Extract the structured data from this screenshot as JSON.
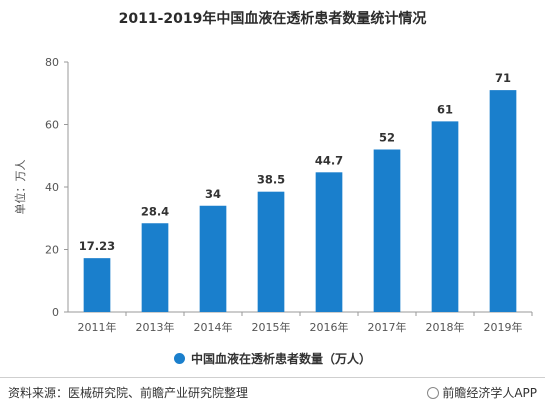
{
  "title": "2011-2019年中国血液在透析患者数量统计情况",
  "chart_data": {
    "type": "bar",
    "categories": [
      "2011年",
      "2013年",
      "2014年",
      "2015年",
      "2016年",
      "2017年",
      "2018年",
      "2019年"
    ],
    "series": [
      {
        "name": "中国血液在透析患者数量（万人）",
        "values": [
          17.23,
          28.4,
          34,
          38.5,
          44.7,
          52,
          61,
          71
        ]
      }
    ],
    "value_labels": [
      "17.23",
      "28.4",
      "34",
      "38.5",
      "44.7",
      "52",
      "61",
      "71"
    ],
    "ylabel": "单位：万人",
    "ylim": [
      0,
      80
    ],
    "yticks": [
      0,
      20,
      40,
      60,
      80
    ],
    "grid": false,
    "legend_position": "bottom",
    "bar_color": "#1a7fcc"
  },
  "footer": {
    "source": "资料来源：医械研究院、前瞻产业研究院整理",
    "brand": "前瞻经济学人APP"
  },
  "icons": {
    "brand": "at-icon"
  }
}
